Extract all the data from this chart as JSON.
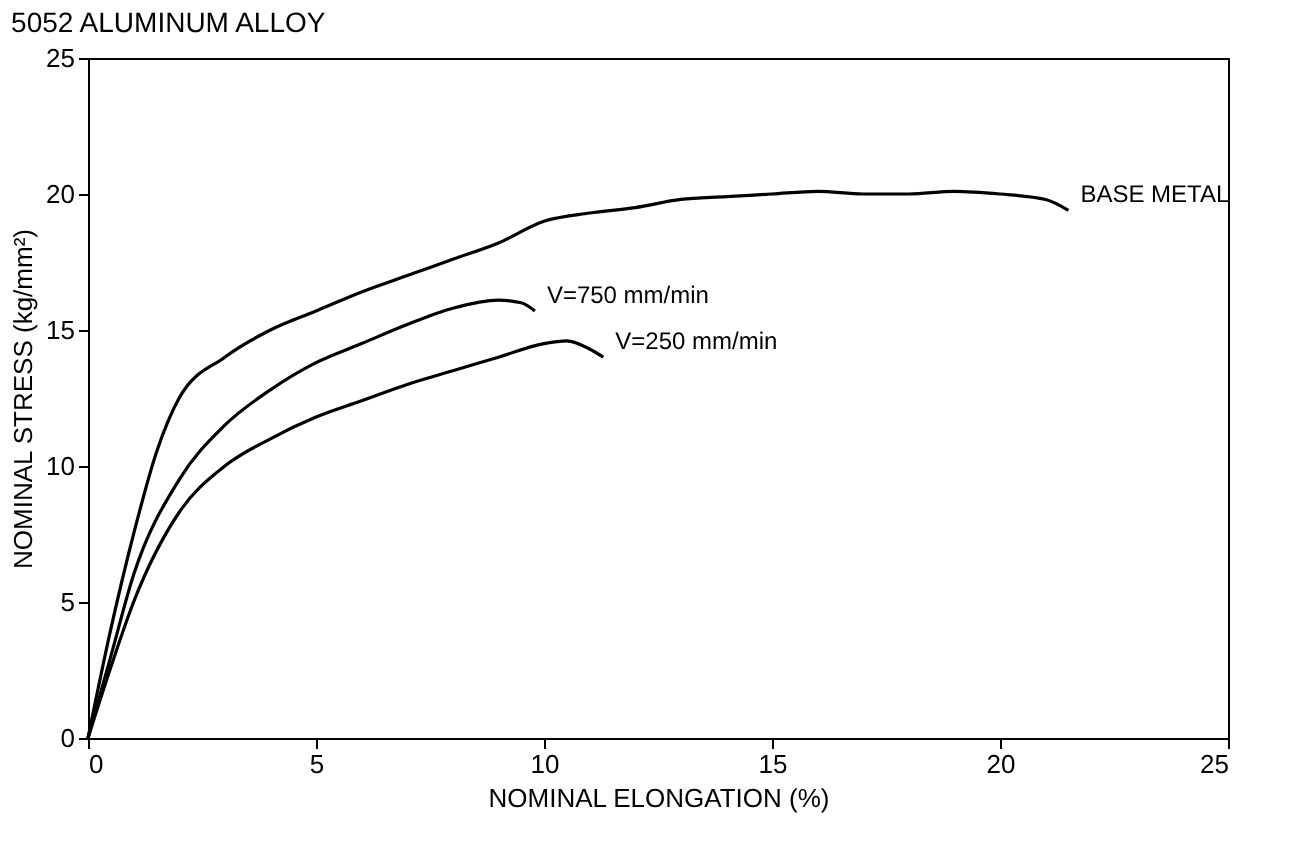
{
  "chart_data": {
    "type": "line",
    "title": "5052 ALUMINUM ALLOY",
    "xlabel": "NOMINAL ELONGATION (%)",
    "ylabel": "NOMINAL STRESS (kg/mm²)",
    "xlim": [
      0,
      25
    ],
    "ylim": [
      0,
      25
    ],
    "xticks": [
      0,
      5,
      10,
      15,
      20,
      25
    ],
    "yticks": [
      0,
      5,
      10,
      15,
      20,
      25
    ],
    "grid": false,
    "legend": false,
    "marker": "none",
    "line_style": "solid",
    "series": [
      {
        "name": "BASE METAL",
        "color": "#000000",
        "x": [
          0,
          0.5,
          1,
          1.5,
          2,
          3,
          4,
          5,
          6,
          7,
          8,
          9,
          10,
          11,
          12,
          13,
          14,
          15,
          16,
          17,
          18,
          19,
          20,
          21,
          21.5
        ],
        "values": [
          0,
          4,
          7.5,
          10.5,
          12.5,
          14,
          15,
          15.7,
          16.4,
          17,
          17.6,
          18.2,
          19,
          19.3,
          19.5,
          19.8,
          19.9,
          20,
          20.1,
          20,
          20,
          20.1,
          20,
          19.8,
          19.4
        ]
      },
      {
        "name": "V=750 mm/min",
        "color": "#000000",
        "x": [
          0,
          0.5,
          1,
          2,
          3,
          4,
          5,
          6,
          7,
          8,
          9,
          9.5,
          9.8
        ],
        "values": [
          0,
          3,
          6,
          9.5,
          11.5,
          12.8,
          13.8,
          14.5,
          15.2,
          15.8,
          16.1,
          16,
          15.7
        ]
      },
      {
        "name": "V=250 mm/min",
        "color": "#000000",
        "x": [
          0,
          0.5,
          1,
          2,
          3,
          4,
          5,
          6,
          7,
          8,
          9,
          10,
          10.5,
          11,
          11.3
        ],
        "values": [
          0,
          2.6,
          5,
          8.3,
          10,
          11,
          11.8,
          12.4,
          13,
          13.5,
          14,
          14.5,
          14.6,
          14.3,
          14
        ]
      }
    ]
  }
}
